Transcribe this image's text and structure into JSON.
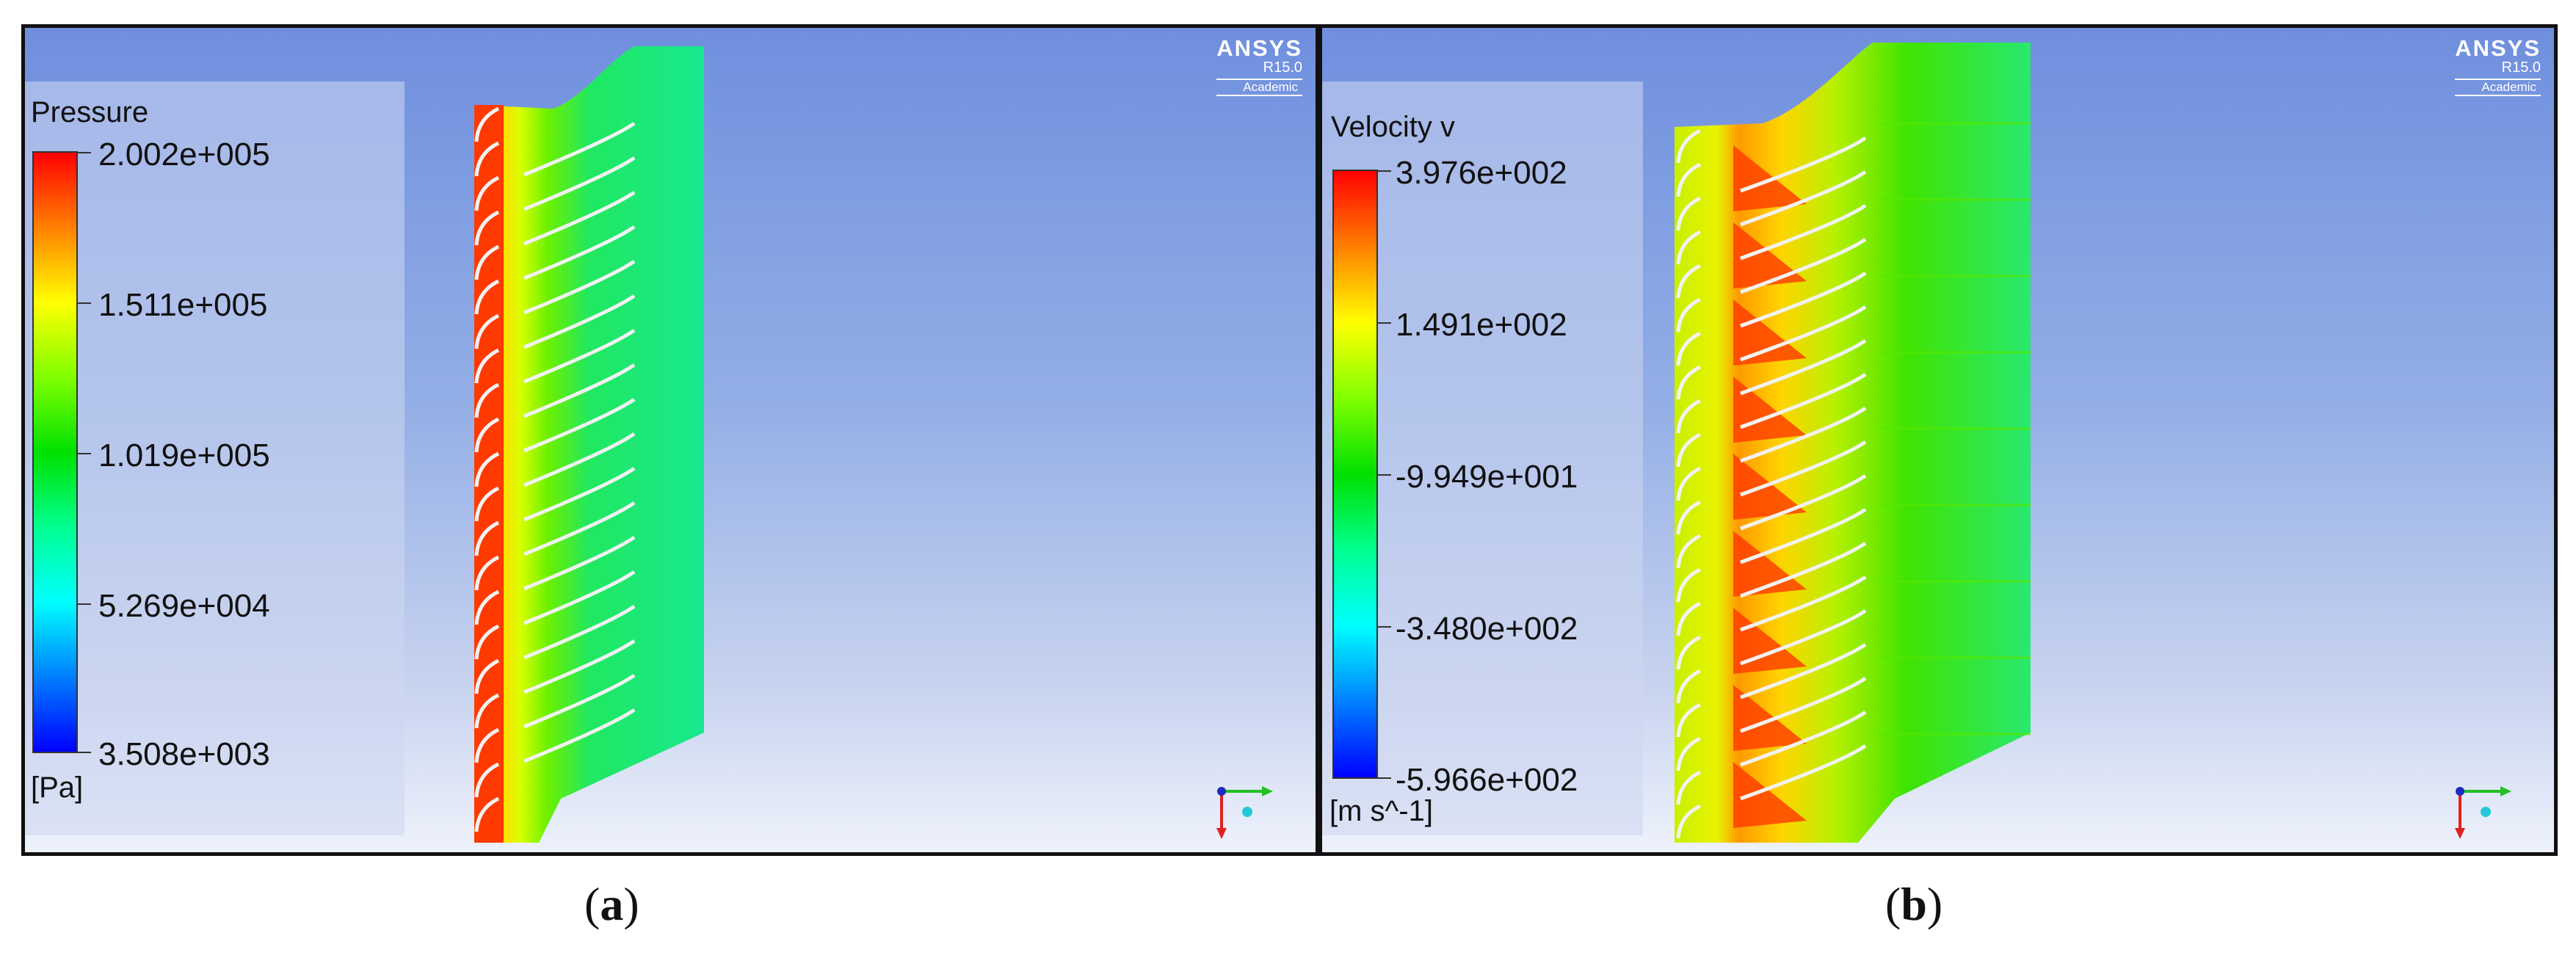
{
  "panel_a": {
    "legend": {
      "title": "Pressure",
      "unit": "[Pa]",
      "ticks": [
        "2.002e+005",
        "1.511e+005",
        "1.019e+005",
        "5.269e+004",
        "3.508e+003"
      ]
    },
    "watermark": {
      "brand": "ANSYS",
      "release": "R15.0",
      "edition": "Academic"
    },
    "caption": {
      "open": "(",
      "letter": "a",
      "close": ")"
    }
  },
  "panel_b": {
    "legend": {
      "title": "Velocity v",
      "unit": "[m s^-1]",
      "ticks": [
        "3.976e+002",
        "1.491e+002",
        "-9.949e+001",
        "-3.480e+002",
        "-5.966e+002"
      ]
    },
    "watermark": {
      "brand": "ANSYS",
      "release": "R15.0",
      "edition": "Academic"
    },
    "caption": {
      "open": "(",
      "letter": "b",
      "close": ")"
    }
  },
  "colors": {
    "colormap": [
      "#ff0000",
      "#ff8000",
      "#ffff00",
      "#80ff00",
      "#00e000",
      "#00ff90",
      "#00ffff",
      "#0080ff",
      "#0000ff"
    ],
    "background_top": "#6f8fde",
    "background_bottom": "#eef2fb"
  },
  "icons": {
    "axis_triad": "axis-triad-icon"
  }
}
